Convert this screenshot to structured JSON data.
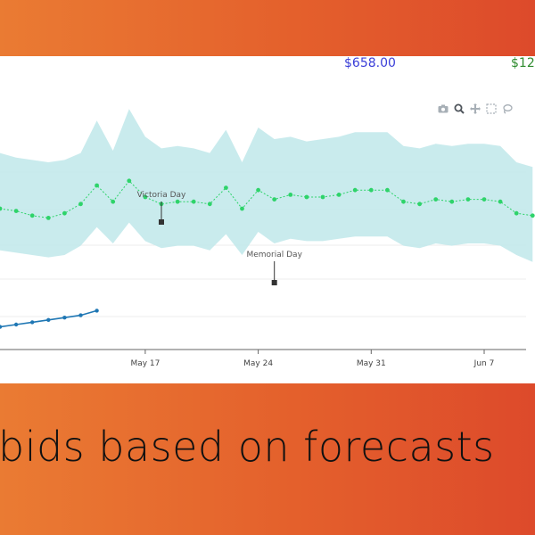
{
  "kpis": {
    "spend": "$658.00",
    "revenue": "$12,"
  },
  "toolbar": {
    "icons": [
      "camera-icon",
      "zoom-icon",
      "pan-icon",
      "box-select-icon",
      "lasso-icon"
    ]
  },
  "caption": "bids based on forecasts",
  "colors": {
    "band": "#bfe7ea",
    "forecast": "#2ed36a",
    "actual": "#1f77b4",
    "annotation": "#333333"
  },
  "chart_data": {
    "type": "line",
    "x_tick_labels": [
      "May 17",
      "May 24",
      "May 31",
      "Jun 7"
    ],
    "annotations": [
      {
        "text": "Victoria Day",
        "date": "May 18"
      },
      {
        "text": "Memorial Day",
        "date": "May 25"
      }
    ],
    "series": [
      {
        "role": "forecast",
        "dates": [
          "May 8",
          "May 9",
          "May 10",
          "May 11",
          "May 12",
          "May 13",
          "May 14",
          "May 15",
          "May 16",
          "May 17",
          "May 18",
          "May 19",
          "May 20",
          "May 21",
          "May 22",
          "May 23",
          "May 24",
          "May 25",
          "May 26",
          "May 27",
          "May 28",
          "May 29",
          "May 30",
          "May 31",
          "Jun 1",
          "Jun 2",
          "Jun 3",
          "Jun 4",
          "Jun 5",
          "Jun 6",
          "Jun 7",
          "Jun 8",
          "Jun 9",
          "Jun 10"
        ],
        "values": [
          60,
          59,
          57,
          56,
          58,
          62,
          70,
          63,
          72,
          65,
          62,
          63,
          63,
          62,
          69,
          60,
          68,
          64,
          66,
          65,
          65,
          66,
          68,
          68,
          68,
          63,
          62,
          64,
          63,
          64,
          64,
          63,
          58,
          57
        ],
        "upper": [
          84,
          82,
          81,
          80,
          81,
          84,
          98,
          85,
          103,
          91,
          86,
          87,
          86,
          84,
          94,
          80,
          95,
          90,
          91,
          89,
          90,
          91,
          93,
          93,
          93,
          87,
          86,
          88,
          87,
          88,
          88,
          87,
          80,
          78
        ],
        "lower": [
          42,
          41,
          40,
          39,
          40,
          44,
          52,
          45,
          54,
          46,
          43,
          44,
          44,
          42,
          49,
          40,
          50,
          45,
          47,
          46,
          46,
          47,
          48,
          48,
          48,
          44,
          43,
          45,
          44,
          45,
          45,
          44,
          40,
          37
        ]
      },
      {
        "role": "actual",
        "dates": [
          "May 8",
          "May 9",
          "May 10",
          "May 11",
          "May 12",
          "May 13",
          "May 14"
        ],
        "values": [
          9,
          10,
          11,
          12,
          13,
          14,
          16
        ]
      }
    ]
  }
}
